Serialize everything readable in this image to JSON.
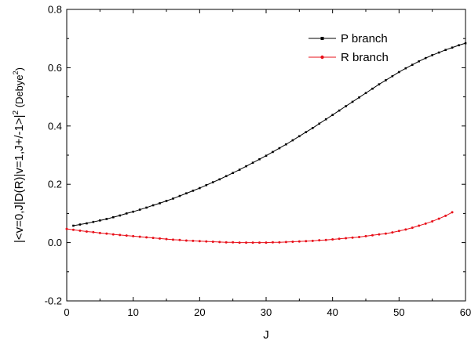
{
  "chart_data": {
    "type": "line",
    "title": "",
    "xlabel": "J",
    "ylabel_main": "|<v=0,J|D(R)|v=1,J+/-1>|",
    "ylabel_sup1": "2",
    "ylabel_unit": " (Debye",
    "ylabel_sup2": "2",
    "ylabel_close": ")",
    "xlim": [
      0,
      60
    ],
    "ylim": [
      -0.2,
      0.8
    ],
    "xticks": [
      0,
      10,
      20,
      30,
      40,
      50,
      60
    ],
    "yticks": [
      -0.2,
      0.0,
      0.2,
      0.4,
      0.6,
      0.8
    ],
    "ytick_labels": [
      "-0.2",
      "0.0",
      "0.2",
      "0.4",
      "0.6",
      "0.8"
    ],
    "grid": false,
    "legend_position": "top-right",
    "series": [
      {
        "name": "P branch",
        "color": "#000000",
        "marker": "square",
        "x": [
          1,
          2,
          3,
          4,
          5,
          6,
          7,
          8,
          9,
          10,
          11,
          12,
          13,
          14,
          15,
          16,
          17,
          18,
          19,
          20,
          21,
          22,
          23,
          24,
          25,
          26,
          27,
          28,
          29,
          30,
          31,
          32,
          33,
          34,
          35,
          36,
          37,
          38,
          39,
          40,
          41,
          42,
          43,
          44,
          45,
          46,
          47,
          48,
          49,
          50,
          51,
          52,
          53,
          54,
          55,
          56,
          57,
          58,
          59,
          60
        ],
        "y": [
          0.058,
          0.062,
          0.066,
          0.071,
          0.076,
          0.081,
          0.087,
          0.093,
          0.1,
          0.106,
          0.113,
          0.12,
          0.128,
          0.135,
          0.143,
          0.151,
          0.16,
          0.169,
          0.178,
          0.187,
          0.197,
          0.207,
          0.217,
          0.228,
          0.239,
          0.25,
          0.262,
          0.274,
          0.286,
          0.298,
          0.311,
          0.324,
          0.337,
          0.351,
          0.365,
          0.379,
          0.393,
          0.408,
          0.423,
          0.438,
          0.453,
          0.468,
          0.483,
          0.498,
          0.513,
          0.528,
          0.543,
          0.557,
          0.571,
          0.585,
          0.598,
          0.61,
          0.622,
          0.633,
          0.643,
          0.652,
          0.661,
          0.669,
          0.677,
          0.684
        ]
      },
      {
        "name": "R branch",
        "color": "#e8101a",
        "marker": "circle",
        "x": [
          0,
          1,
          2,
          3,
          4,
          5,
          6,
          7,
          8,
          9,
          10,
          11,
          12,
          13,
          14,
          15,
          16,
          17,
          18,
          19,
          20,
          21,
          22,
          23,
          24,
          25,
          26,
          27,
          28,
          29,
          30,
          31,
          32,
          33,
          34,
          35,
          36,
          37,
          38,
          39,
          40,
          41,
          42,
          43,
          44,
          45,
          46,
          47,
          48,
          49,
          50,
          51,
          52,
          53,
          54,
          55,
          56,
          57,
          58
        ],
        "y": [
          0.047,
          0.044,
          0.041,
          0.038,
          0.036,
          0.033,
          0.031,
          0.028,
          0.026,
          0.024,
          0.022,
          0.02,
          0.018,
          0.016,
          0.014,
          0.012,
          0.01,
          0.009,
          0.007,
          0.006,
          0.005,
          0.004,
          0.003,
          0.002,
          0.001,
          0.001,
          0.0,
          0.0,
          0.0,
          0.0,
          0.0,
          0.001,
          0.001,
          0.002,
          0.003,
          0.004,
          0.005,
          0.006,
          0.008,
          0.009,
          0.011,
          0.013,
          0.015,
          0.017,
          0.019,
          0.022,
          0.025,
          0.028,
          0.031,
          0.035,
          0.04,
          0.045,
          0.051,
          0.058,
          0.065,
          0.073,
          0.082,
          0.092,
          0.104
        ]
      }
    ]
  }
}
